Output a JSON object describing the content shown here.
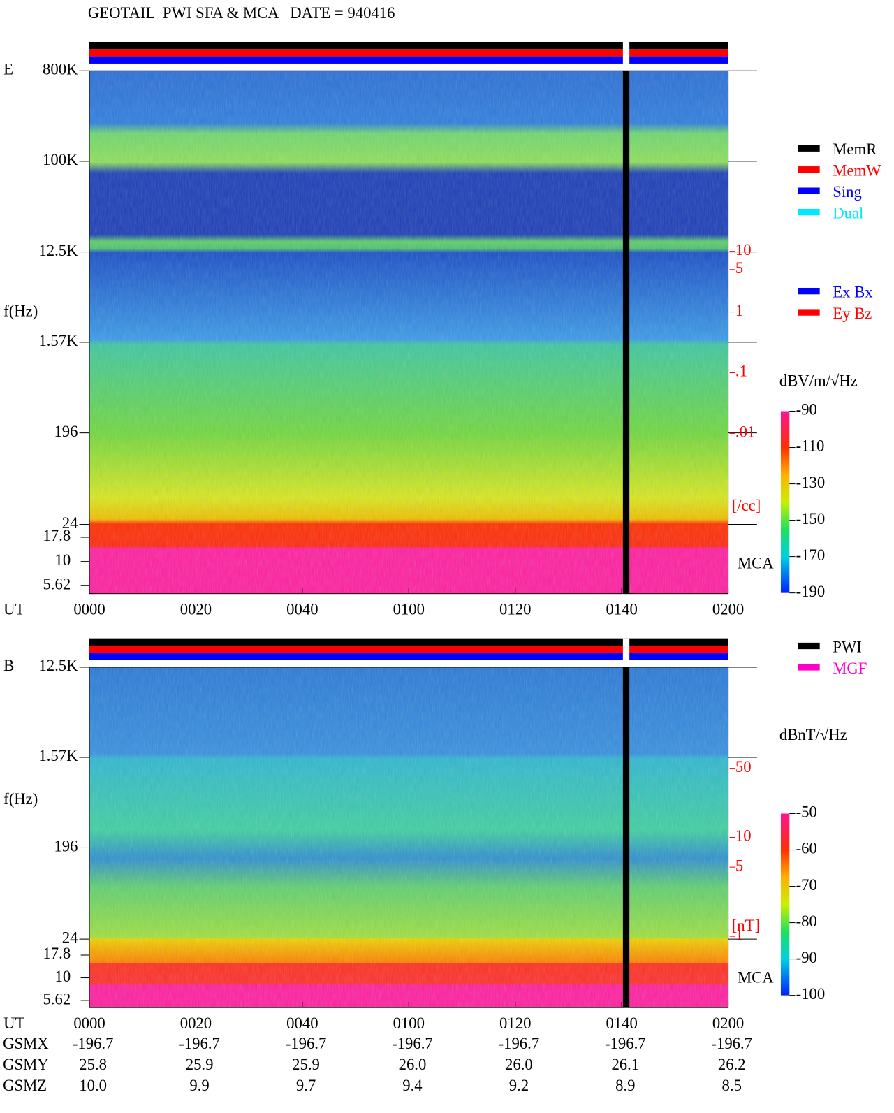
{
  "title": "GEOTAIL  PWI SFA & MCA   DATE = 940416",
  "chart_data": [
    {
      "type": "spectrogram",
      "panel_label": "E",
      "y_label": "f(Hz)",
      "x_label": "UT",
      "log_y": true,
      "xlim": [
        0,
        120
      ],
      "xticks": [
        {
          "value": 0,
          "label": "0000"
        },
        {
          "value": 20,
          "label": "0020"
        },
        {
          "value": 40,
          "label": "0040"
        },
        {
          "value": 60,
          "label": "0100"
        },
        {
          "value": 80,
          "label": "0120"
        },
        {
          "value": 100,
          "label": "0140"
        },
        {
          "value": 120,
          "label": "0200"
        }
      ],
      "ylim": [
        24,
        800000
      ],
      "yticks": [
        {
          "value": 800000,
          "label": "800K"
        },
        {
          "value": 100000,
          "label": "100K"
        },
        {
          "value": 12500,
          "label": "12.5K"
        },
        {
          "value": 1570,
          "label": "1.57K"
        },
        196,
        24
      ],
      "mca_label": "MCA",
      "mca_ylim": [
        4.65,
        24.2
      ],
      "mca_ticks": [
        17.8,
        10,
        5.62
      ],
      "y2lim": [
        2.3e-05,
        9400
      ],
      "y2_unit": "[/cc]",
      "y2_color": "#ff0000",
      "y2ticks": [
        10,
        5,
        1,
        {
          "value": 0.1,
          "label": ".1"
        },
        {
          "value": 0.01,
          "label": ".01"
        }
      ],
      "colorbar": {
        "label": "dBV/m/√Hz",
        "lim": [
          -190,
          -90
        ],
        "ticks": [
          -90,
          -110,
          -130,
          -150,
          -170,
          -190
        ]
      },
      "legend": [
        {
          "name": "MemR",
          "color": "#000000"
        },
        {
          "name": "MemW",
          "color": "#ff0000"
        },
        {
          "name": "Sing",
          "color": "#0000ff"
        },
        {
          "name": "Dual",
          "color": "#00e8ff"
        }
      ],
      "legend2": [
        {
          "name": "Ex Bx",
          "color": "#0000ff"
        },
        {
          "name": "Ey Bz",
          "color": "#ff0000"
        }
      ]
    },
    {
      "type": "spectrogram",
      "panel_label": "B",
      "y_label": "f(Hz)",
      "x_label": "UT",
      "log_y": true,
      "xlim": [
        0,
        120
      ],
      "xticks": [
        {
          "value": 0,
          "label": "0000"
        },
        {
          "value": 20,
          "label": "0020"
        },
        {
          "value": 40,
          "label": "0040"
        },
        {
          "value": 60,
          "label": "0100"
        },
        {
          "value": 80,
          "label": "0120"
        },
        {
          "value": 100,
          "label": "0140"
        },
        {
          "value": 120,
          "label": "0200"
        }
      ],
      "ylim": [
        24,
        12500
      ],
      "yticks": [
        {
          "value": 12500,
          "label": "12.5K"
        },
        {
          "value": 1570,
          "label": "1.57K"
        },
        196,
        24
      ],
      "mca_label": "MCA",
      "mca_ylim": [
        4.7,
        26.7
      ],
      "mca_ticks": [
        17.8,
        10,
        5.62
      ],
      "y2lim": [
        0.19,
        526
      ],
      "y2_unit": "[nT]",
      "y2_color": "#ff0000",
      "y2ticks": [
        50,
        10,
        5,
        1
      ],
      "colorbar": {
        "label": "dBnT/√Hz",
        "lim": [
          -100,
          -50
        ],
        "ticks": [
          -50,
          -60,
          -70,
          -80,
          -90,
          -100
        ]
      },
      "legend": [
        {
          "name": "PWI",
          "color": "#000000"
        },
        {
          "name": "MGF",
          "color": "#ff00cc"
        }
      ]
    }
  ],
  "ephemeris": {
    "rows": [
      {
        "label": "GSMX",
        "values": [
          "-196.7",
          "-196.7",
          "-196.7",
          "-196.7",
          "-196.7",
          "-196.7",
          "-196.7"
        ]
      },
      {
        "label": "GSMY",
        "values": [
          "25.8",
          "25.9",
          "25.9",
          "26.0",
          "26.0",
          "26.1",
          "26.2"
        ]
      },
      {
        "label": "GSMZ",
        "values": [
          "10.0",
          "9.9",
          "9.7",
          "9.4",
          "9.2",
          "8.9",
          "8.5"
        ]
      }
    ]
  }
}
